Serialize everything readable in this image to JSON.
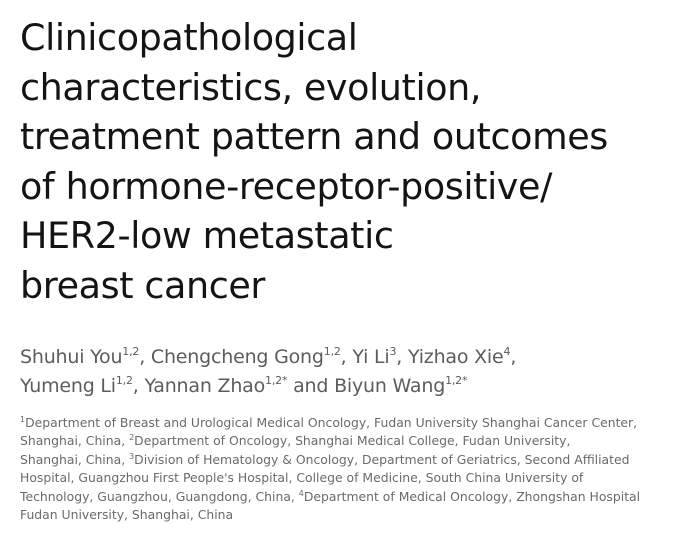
{
  "article": {
    "title_lines": [
      "Clinicopathological",
      "characteristics, evolution,",
      "treatment pattern and outcomes",
      "of hormone-receptor-positive/",
      "HER2-low metastatic",
      "breast cancer"
    ],
    "authors": [
      {
        "name": "Shuhui You",
        "sup": "1,2",
        "sep": ", "
      },
      {
        "name": "Chengcheng Gong",
        "sup": "1,2",
        "sep": ", "
      },
      {
        "name": "Yi Li",
        "sup": "3",
        "sep": ", "
      },
      {
        "name": "Yizhao Xie",
        "sup": "4",
        "sep": ","
      },
      {
        "name": "Yumeng Li",
        "sup": "1,2",
        "sep": ", "
      },
      {
        "name": "Yannan Zhao",
        "sup": "1,2*",
        "sep": " and "
      },
      {
        "name": "Biyun Wang",
        "sup": "1,2*",
        "sep": ""
      }
    ],
    "affiliations": [
      {
        "num": "1",
        "text": "Department of Breast and Urological Medical Oncology, Fudan University Shanghai Cancer Center, Shanghai, China"
      },
      {
        "num": "2",
        "text": "Department of Oncology, Shanghai Medical College, Fudan University, Shanghai, China"
      },
      {
        "num": "3",
        "text": "Division of Hematology & Oncology, Department of Geriatrics, Second Affiliated Hospital, Guangzhou First People's Hospital, College of Medicine, South China University of Technology, Guangzhou, Guangdong, China"
      },
      {
        "num": "4",
        "text": "Department of Medical Oncology, Zhongshan Hospital Fudan University, Shanghai, China"
      }
    ],
    "affiliation_lines": [
      [
        {
          "sup": "1",
          "text": "Department of Breast and Urological Medical Oncology, Fudan University Shanghai Cancer Center,"
        }
      ],
      [
        {
          "sup": "",
          "text": "Shanghai, China, "
        },
        {
          "sup": "2",
          "text": "Department of Oncology, Shanghai Medical College, Fudan University,"
        }
      ],
      [
        {
          "sup": "",
          "text": "Shanghai, China, "
        },
        {
          "sup": "3",
          "text": "Division of Hematology & Oncology, Department of Geriatrics, Second Affiliated"
        }
      ],
      [
        {
          "sup": "",
          "text": "Hospital, Guangzhou First People's Hospital, College of Medicine, South China University of"
        }
      ],
      [
        {
          "sup": "",
          "text": "Technology, Guangzhou, Guangdong, China, "
        },
        {
          "sup": "4",
          "text": "Department of Medical Oncology, Zhongshan Hospital"
        }
      ],
      [
        {
          "sup": "",
          "text": "Fudan University, Shanghai, China"
        }
      ]
    ]
  }
}
